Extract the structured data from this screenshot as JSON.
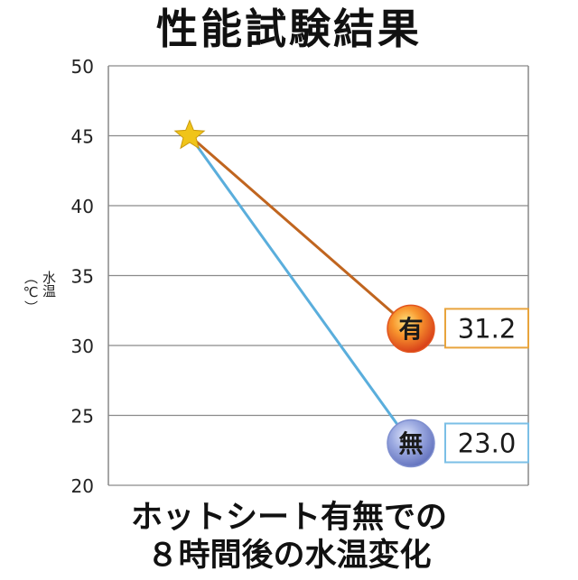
{
  "chart_data": {
    "type": "line",
    "title": "性能試験結果",
    "ylabel": "水温 （℃）",
    "ylim": [
      20,
      50
    ],
    "yticks": [
      20,
      25,
      30,
      35,
      40,
      45,
      50
    ],
    "grid": true,
    "start": {
      "y": 45
    },
    "series": [
      {
        "name": "有",
        "start": 45,
        "end": 31.2,
        "label": "31.2",
        "color": "#c0651f",
        "badge_color": "#e2541e",
        "box_color": "#e8a43c"
      },
      {
        "name": "無",
        "start": 45,
        "end": 23.0,
        "label": "23.0",
        "color": "#5aaedc",
        "badge_color": "#7f8fcf",
        "box_color": "#7bbfe6"
      }
    ],
    "caption": [
      "ホットシート有無での",
      "８時間後の水温変化"
    ]
  }
}
